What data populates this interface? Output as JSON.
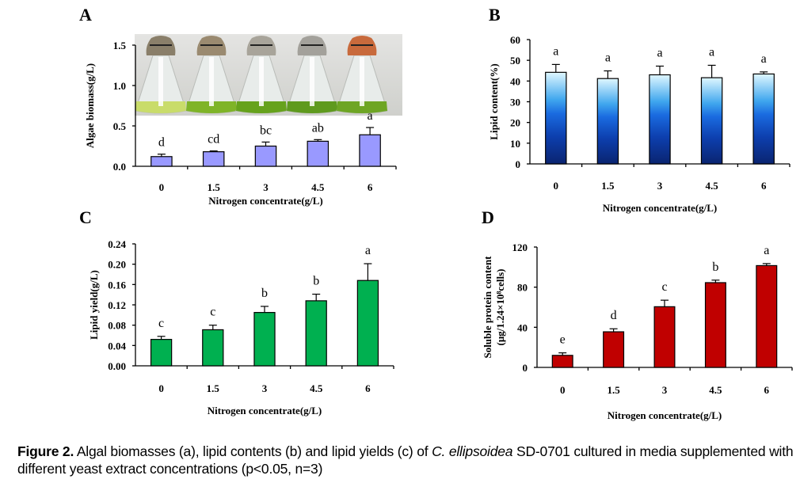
{
  "caption": {
    "label": "Figure 2.",
    "text_before_italic": " Algal biomasses (a), lipid contents (b) and lipid yields (c) of ",
    "italic": "C. ellipsoidea",
    "text_after_italic": " SD-0701 cultured in media supplemented with different yeast extract concentrations (p<0.05, n=3)"
  },
  "chart_data": [
    {
      "panel": "A",
      "type": "bar",
      "xlabel": "Nitrogen concentrate(g/L)",
      "ylabel": "Algae biomass(g/L)",
      "categories": [
        "0",
        "1.5",
        "3",
        "4.5",
        "6"
      ],
      "values": [
        0.12,
        0.18,
        0.25,
        0.31,
        0.39
      ],
      "errors": [
        0.03,
        0.01,
        0.05,
        0.02,
        0.09
      ],
      "significance": [
        "d",
        "cd",
        "bc",
        "ab",
        "a"
      ],
      "ylim": [
        0,
        1.5
      ],
      "yticks": [
        "0.0",
        "0.5",
        "1.0",
        "1.5"
      ],
      "ytick_values": [
        0,
        0.5,
        1.0,
        1.5
      ],
      "bar_color": "#9999ff",
      "inset_photo": "five Erlenmeyer flasks with green algae cultures, paper-capped",
      "grid": false
    },
    {
      "panel": "B",
      "type": "bar",
      "xlabel": "Nitrogen concentrate(g/L)",
      "ylabel": "Lipid content(%)",
      "categories": [
        "0",
        "1.5",
        "3",
        "4.5",
        "6"
      ],
      "values": [
        44.2,
        41.2,
        43.0,
        41.6,
        43.4
      ],
      "errors": [
        3.8,
        3.7,
        4.2,
        6.0,
        1.0
      ],
      "significance": [
        "a",
        "a",
        "a",
        "a",
        "a"
      ],
      "ylim": [
        0,
        60
      ],
      "yticks": [
        "0",
        "10",
        "20",
        "30",
        "40",
        "50",
        "60"
      ],
      "ytick_values": [
        0,
        10,
        20,
        30,
        40,
        50,
        60
      ],
      "bar_color_gradient": [
        "#0a2a7a",
        "#1a5fd6",
        "#49b3f0",
        "#d6f3ff"
      ],
      "grid": false
    },
    {
      "panel": "C",
      "type": "bar",
      "xlabel": "Nitrogen concentrate(g/L)",
      "ylabel": "Lipid yield(g/L)",
      "categories": [
        "0",
        "1.5",
        "3",
        "4.5",
        "6"
      ],
      "values": [
        0.052,
        0.071,
        0.105,
        0.128,
        0.168
      ],
      "errors": [
        0.006,
        0.009,
        0.012,
        0.013,
        0.033
      ],
      "significance": [
        "c",
        "c",
        "b",
        "b",
        "a"
      ],
      "ylim": [
        0,
        0.24
      ],
      "yticks": [
        "0.00",
        "0.04",
        "0.08",
        "0.12",
        "0.16",
        "0.20",
        "0.24"
      ],
      "ytick_values": [
        0,
        0.04,
        0.08,
        0.12,
        0.16,
        0.2,
        0.24
      ],
      "bar_color": "#00b050",
      "grid": false
    },
    {
      "panel": "D",
      "type": "bar",
      "xlabel": "Nitrogen concentrate(g/L)",
      "ylabel_line1": "Soluble protein content",
      "ylabel_line2": "(μg/1.24×10⁸cells)",
      "categories": [
        "0",
        "1.5",
        "3",
        "4.5",
        "6"
      ],
      "values": [
        12,
        35.5,
        60.5,
        84.5,
        101.5
      ],
      "errors": [
        2.5,
        3,
        6.5,
        2.5,
        2
      ],
      "significance": [
        "e",
        "d",
        "c",
        "b",
        "a"
      ],
      "ylim": [
        0,
        120
      ],
      "yticks": [
        "0",
        "40",
        "80",
        "120"
      ],
      "ytick_values": [
        0,
        40,
        80,
        120
      ],
      "bar_color": "#c00000",
      "grid": false
    }
  ]
}
